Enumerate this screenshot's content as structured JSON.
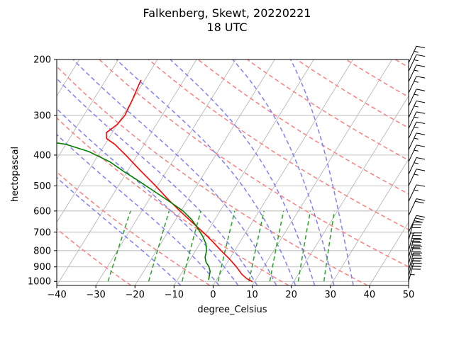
{
  "chart_data": {
    "type": "line",
    "title": "Falkenberg, Skewt, 20220221",
    "subtitle": "18 UTC",
    "xlabel": "degree_Celsius",
    "ylabel": "hectopascal",
    "xlim": [
      -40,
      50
    ],
    "ylim": [
      1030,
      200
    ],
    "y_scale": "log",
    "grid": true,
    "x_ticks": [
      -40,
      -30,
      -20,
      -10,
      0,
      10,
      20,
      30,
      40,
      50
    ],
    "y_ticks": [
      200,
      300,
      400,
      500,
      600,
      700,
      800,
      900,
      1000
    ],
    "series": [
      {
        "color": "#ff0000",
        "values": [
          [
            1003,
            9.5
          ],
          [
            980,
            7.5
          ],
          [
            950,
            5.6
          ],
          [
            900,
            3.0
          ],
          [
            850,
            0.0
          ],
          [
            800,
            -3.5
          ],
          [
            750,
            -7.0
          ],
          [
            700,
            -11.0
          ],
          [
            650,
            -15.5
          ],
          [
            600,
            -20.3
          ],
          [
            550,
            -25.3
          ],
          [
            500,
            -30.5
          ],
          [
            450,
            -36.5
          ],
          [
            400,
            -43.0
          ],
          [
            370,
            -47.5
          ],
          [
            355,
            -50.5
          ],
          [
            340,
            -51.5
          ],
          [
            320,
            -50.0
          ],
          [
            300,
            -49.5
          ],
          [
            270,
            -50.0
          ],
          [
            250,
            -50.5
          ],
          [
            232,
            -51.0
          ]
        ]
      },
      {
        "color": "#008000",
        "values": [
          [
            990,
            -2.0
          ],
          [
            960,
            -2.5
          ],
          [
            930,
            -3.0
          ],
          [
            900,
            -4.0
          ],
          [
            870,
            -5.5
          ],
          [
            840,
            -6.5
          ],
          [
            800,
            -7.2
          ],
          [
            760,
            -8.5
          ],
          [
            720,
            -10.5
          ],
          [
            680,
            -13.0
          ],
          [
            640,
            -15.8
          ],
          [
            600,
            -19.5
          ],
          [
            560,
            -24.5
          ],
          [
            520,
            -30.0
          ],
          [
            480,
            -36.0
          ],
          [
            450,
            -41.0
          ],
          [
            420,
            -46.0
          ],
          [
            390,
            -53.0
          ],
          [
            370,
            -60.0
          ],
          [
            360,
            -67.0
          ],
          [
            355,
            -72.0
          ]
        ]
      }
    ],
    "dry_adiabats_theta_K": [
      230,
      250,
      270,
      290,
      310,
      330,
      350,
      370,
      390,
      410,
      430,
      450
    ],
    "moist_adiabats_start_C": [
      -10,
      0,
      5,
      10,
      15,
      20,
      25,
      30,
      35
    ],
    "mixing_ratio_lines_gkg": [
      0.4,
      1,
      2,
      4,
      7,
      10,
      16,
      24
    ],
    "wind_barbs": [
      {
        "p": 1000,
        "speed_kt": 35
      },
      {
        "p": 960,
        "speed_kt": 40
      },
      {
        "p": 925,
        "speed_kt": 40
      },
      {
        "p": 880,
        "speed_kt": 40
      },
      {
        "p": 840,
        "speed_kt": 40
      },
      {
        "p": 800,
        "speed_kt": 40
      },
      {
        "p": 740,
        "speed_kt": 35
      },
      {
        "p": 700,
        "speed_kt": 30
      },
      {
        "p": 620,
        "speed_kt": 20
      },
      {
        "p": 560,
        "speed_kt": 15
      },
      {
        "p": 500,
        "speed_kt": 15
      },
      {
        "p": 460,
        "speed_kt": 15
      },
      {
        "p": 420,
        "speed_kt": 15
      },
      {
        "p": 385,
        "speed_kt": 15
      },
      {
        "p": 355,
        "speed_kt": 15
      },
      {
        "p": 330,
        "speed_kt": 15
      },
      {
        "p": 305,
        "speed_kt": 15
      },
      {
        "p": 280,
        "speed_kt": 15
      },
      {
        "p": 255,
        "speed_kt": 15
      },
      {
        "p": 235,
        "speed_kt": 15
      },
      {
        "p": 218,
        "speed_kt": 15
      },
      {
        "p": 205,
        "speed_kt": 15
      }
    ],
    "colors": {
      "dry_adiabat": "#ff7f7f",
      "moist_adiabat": "#7f7fff",
      "mixing_ratio": "#2ca02c",
      "isotherm_grid": "#b0b0b0"
    }
  }
}
